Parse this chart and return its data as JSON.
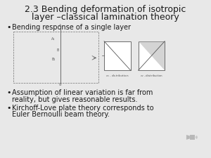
{
  "background_color": "#e8e8e8",
  "title_line1": "2.3 Bending deformation of isotropic",
  "title_line2": "layer –classical lamination theory",
  "title_fontsize": 9.0,
  "title_color": "#1a1a1a",
  "bullet1": "Bending response of a single layer",
  "bullet2_line1": "Assumption of linear variation is far from",
  "bullet2_line2": "reality, but gives reasonable results.",
  "bullet3_line1": "Kirchoff-Love plate theory corresponds to",
  "bullet3_line2": "Euler Bernoulli beam theory.",
  "bullet_fontsize": 7.0,
  "bullet_color": "#1a1a1a",
  "diagram_color": "#555555"
}
